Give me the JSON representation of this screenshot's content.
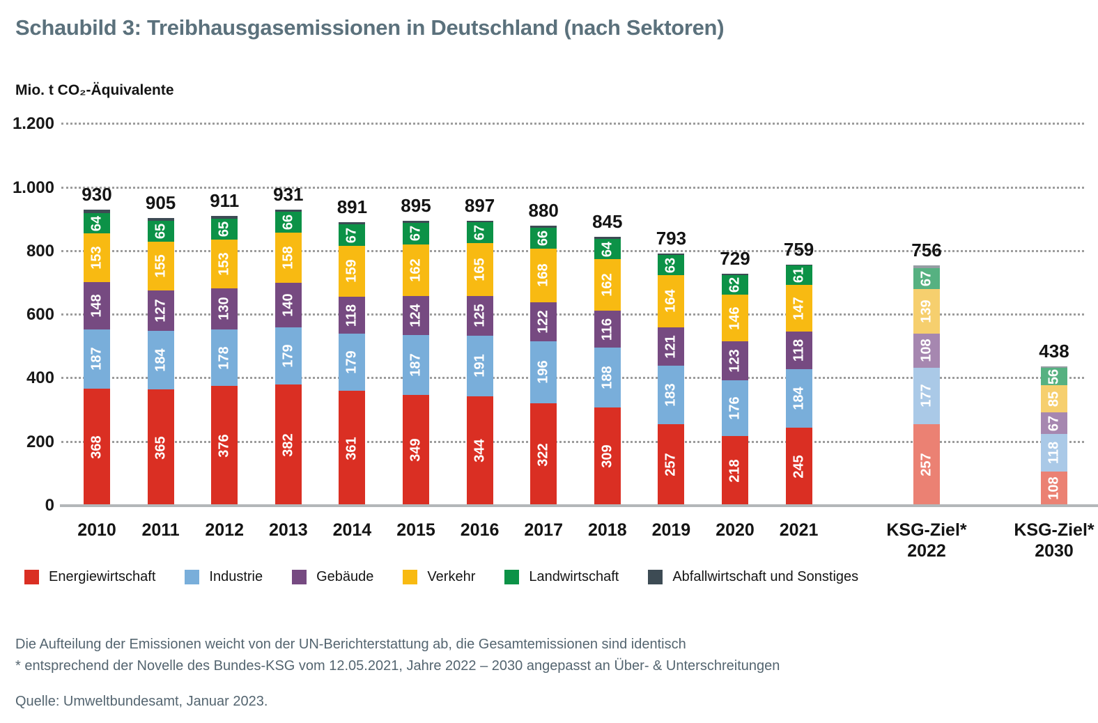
{
  "title": "Schaubild 3: Treibhausgasemissionen in Deutschland (nach Sektoren)",
  "unit_label": "Mio. t CO₂-Äquivalente",
  "footnotes": {
    "line1": "Die Aufteilung der Emissionen weicht von der UN-Berichterstattung ab, die Gesamtemissionen sind identisch",
    "line2": "* entsprechend der Novelle des Bundes-KSG vom 12.05.2021, Jahre 2022 – 2030 angepasst an Über- & Unterschreitungen",
    "source": "Quelle: Umweltbundesamt, Januar 2023."
  },
  "chart_data": {
    "type": "bar",
    "subtype": "stacked",
    "title": "Schaubild 3: Treibhausgasemissionen in Deutschland (nach Sektoren)",
    "ylabel": "Mio. t CO₂-Äquivalente",
    "ylim": [
      0,
      1200
    ],
    "yticks": [
      0,
      200,
      400,
      600,
      800,
      1000,
      1200
    ],
    "ytick_labels": [
      "0",
      "200",
      "400",
      "600",
      "800",
      "1.000",
      "1.200"
    ],
    "grid": "horizontal-dotted",
    "legend_position": "bottom",
    "categories": [
      "2010",
      "2011",
      "2012",
      "2013",
      "2014",
      "2015",
      "2016",
      "2017",
      "2018",
      "2019",
      "2020",
      "2021",
      "KSG-Ziel* 2022",
      "KSG-Ziel* 2030"
    ],
    "category_lines": [
      [
        "2010"
      ],
      [
        "2011"
      ],
      [
        "2012"
      ],
      [
        "2013"
      ],
      [
        "2014"
      ],
      [
        "2015"
      ],
      [
        "2016"
      ],
      [
        "2017"
      ],
      [
        "2018"
      ],
      [
        "2019"
      ],
      [
        "2020"
      ],
      [
        "2021"
      ],
      [
        "KSG-Ziel*",
        "2022"
      ],
      [
        "KSG-Ziel*",
        "2030"
      ]
    ],
    "is_target": [
      false,
      false,
      false,
      false,
      false,
      false,
      false,
      false,
      false,
      false,
      false,
      false,
      true,
      true
    ],
    "totals": [
      930,
      905,
      911,
      931,
      891,
      895,
      897,
      880,
      845,
      793,
      729,
      759,
      756,
      438
    ],
    "series": [
      {
        "name": "Energiewirtschaft",
        "color": "#da2f23",
        "muted_color": "#eb8173",
        "show_labels": true,
        "values": [
          368,
          365,
          376,
          382,
          361,
          349,
          344,
          322,
          309,
          257,
          218,
          245,
          257,
          108
        ]
      },
      {
        "name": "Industrie",
        "color": "#79aeda",
        "muted_color": "#aac9e7",
        "show_labels": true,
        "values": [
          187,
          184,
          178,
          179,
          179,
          187,
          191,
          196,
          188,
          183,
          176,
          184,
          177,
          118
        ]
      },
      {
        "name": "Gebäude",
        "color": "#764a81",
        "muted_color": "#a687b0",
        "show_labels": true,
        "values": [
          148,
          127,
          130,
          140,
          118,
          124,
          125,
          122,
          116,
          121,
          123,
          118,
          108,
          67
        ]
      },
      {
        "name": "Verkehr",
        "color": "#f8ba12",
        "muted_color": "#f6cf6e",
        "show_labels": true,
        "values": [
          153,
          155,
          153,
          158,
          159,
          162,
          165,
          168,
          162,
          164,
          146,
          147,
          139,
          85
        ]
      },
      {
        "name": "Landwirtschaft",
        "color": "#0c9247",
        "muted_color": "#56b181",
        "show_labels": true,
        "values": [
          64,
          65,
          65,
          66,
          67,
          67,
          67,
          66,
          64,
          63,
          62,
          61,
          67,
          56
        ]
      },
      {
        "name": "Abfallwirtschaft und Sonstiges",
        "color": "#3d4b54",
        "muted_color": "#959da3",
        "show_labels": false,
        "values": [
          10,
          9,
          9,
          6,
          7,
          6,
          5,
          6,
          6,
          5,
          4,
          4,
          8,
          4
        ]
      }
    ]
  }
}
